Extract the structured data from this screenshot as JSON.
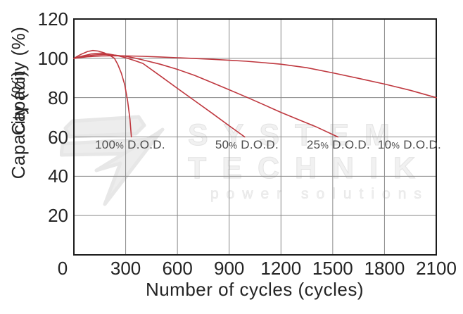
{
  "page": {
    "background": "#ffffff"
  },
  "watermark": {
    "line1": "SYSTEM",
    "line2": "TECHNIK",
    "line3": "power solutions"
  },
  "chart_data": {
    "type": "line",
    "title": "",
    "xlabel": "Number of cycles (cycles)",
    "ylabel": "Capacity (%)",
    "xlim": [
      0,
      2100
    ],
    "ylim": [
      0,
      120
    ],
    "x_ticks": [
      0,
      300,
      600,
      900,
      1200,
      1500,
      1800,
      2100
    ],
    "y_ticks": [
      20,
      40,
      60,
      80,
      100,
      120
    ],
    "grid": true,
    "legend_position": "none",
    "line_color": "#bf383f",
    "grid_color": "#8a8a8a",
    "border_color": "#1c1c1c",
    "series": [
      {
        "name": "100% D.O.D.",
        "points": [
          [
            0,
            100
          ],
          [
            40,
            102
          ],
          [
            80,
            103.5
          ],
          [
            110,
            104
          ],
          [
            140,
            103.7
          ],
          [
            175,
            102.8
          ],
          [
            210,
            101.4
          ],
          [
            235,
            100
          ],
          [
            255,
            96.8
          ],
          [
            275,
            92.5
          ],
          [
            295,
            86.5
          ],
          [
            312,
            78
          ],
          [
            325,
            69
          ],
          [
            333,
            60
          ]
        ]
      },
      {
        "name": "50% D.O.D.",
        "points": [
          [
            0,
            100
          ],
          [
            50,
            101.2
          ],
          [
            100,
            102.2
          ],
          [
            150,
            102.6
          ],
          [
            200,
            102.2
          ],
          [
            250,
            101.4
          ],
          [
            300,
            100.3
          ],
          [
            350,
            98.9
          ],
          [
            400,
            97.4
          ],
          [
            500,
            91.1
          ],
          [
            600,
            84.7
          ],
          [
            700,
            78.4
          ],
          [
            800,
            72.1
          ],
          [
            900,
            65.7
          ],
          [
            990,
            60
          ]
        ]
      },
      {
        "name": "25% D.O.D.",
        "points": [
          [
            0,
            100
          ],
          [
            60,
            101
          ],
          [
            120,
            101.7
          ],
          [
            180,
            102
          ],
          [
            240,
            101.6
          ],
          [
            300,
            101
          ],
          [
            350,
            100.2
          ],
          [
            400,
            99.2
          ],
          [
            500,
            97
          ],
          [
            600,
            94.4
          ],
          [
            700,
            91.3
          ],
          [
            800,
            87.7
          ],
          [
            900,
            84
          ],
          [
            1012,
            79.8
          ],
          [
            1100,
            76.4
          ],
          [
            1200,
            72.5
          ],
          [
            1300,
            68.9
          ],
          [
            1400,
            65.3
          ],
          [
            1530,
            60
          ]
        ]
      },
      {
        "name": "10% D.O.D.",
        "points": [
          [
            0,
            100
          ],
          [
            80,
            100.8
          ],
          [
            160,
            101.2
          ],
          [
            240,
            101.3
          ],
          [
            320,
            101.2
          ],
          [
            400,
            101
          ],
          [
            500,
            100.7
          ],
          [
            600,
            100.3
          ],
          [
            700,
            99.9
          ],
          [
            800,
            99.5
          ],
          [
            900,
            99
          ],
          [
            1000,
            98.5
          ],
          [
            1100,
            97.8
          ],
          [
            1200,
            97
          ],
          [
            1350,
            95.2
          ],
          [
            1500,
            92.6
          ],
          [
            1650,
            89.8
          ],
          [
            1800,
            86.9
          ],
          [
            1950,
            83.7
          ],
          [
            2100,
            80
          ]
        ]
      }
    ],
    "labels": [
      {
        "text": "100% D.O.D.",
        "x": 326,
        "y": 56
      },
      {
        "text": "50% D.O.D.",
        "x": 1003,
        "y": 56
      },
      {
        "text": "25% D.O.D.",
        "x": 1533,
        "y": 56
      },
      {
        "text": "10% D.O.D.",
        "x": 1945,
        "y": 56
      }
    ]
  }
}
